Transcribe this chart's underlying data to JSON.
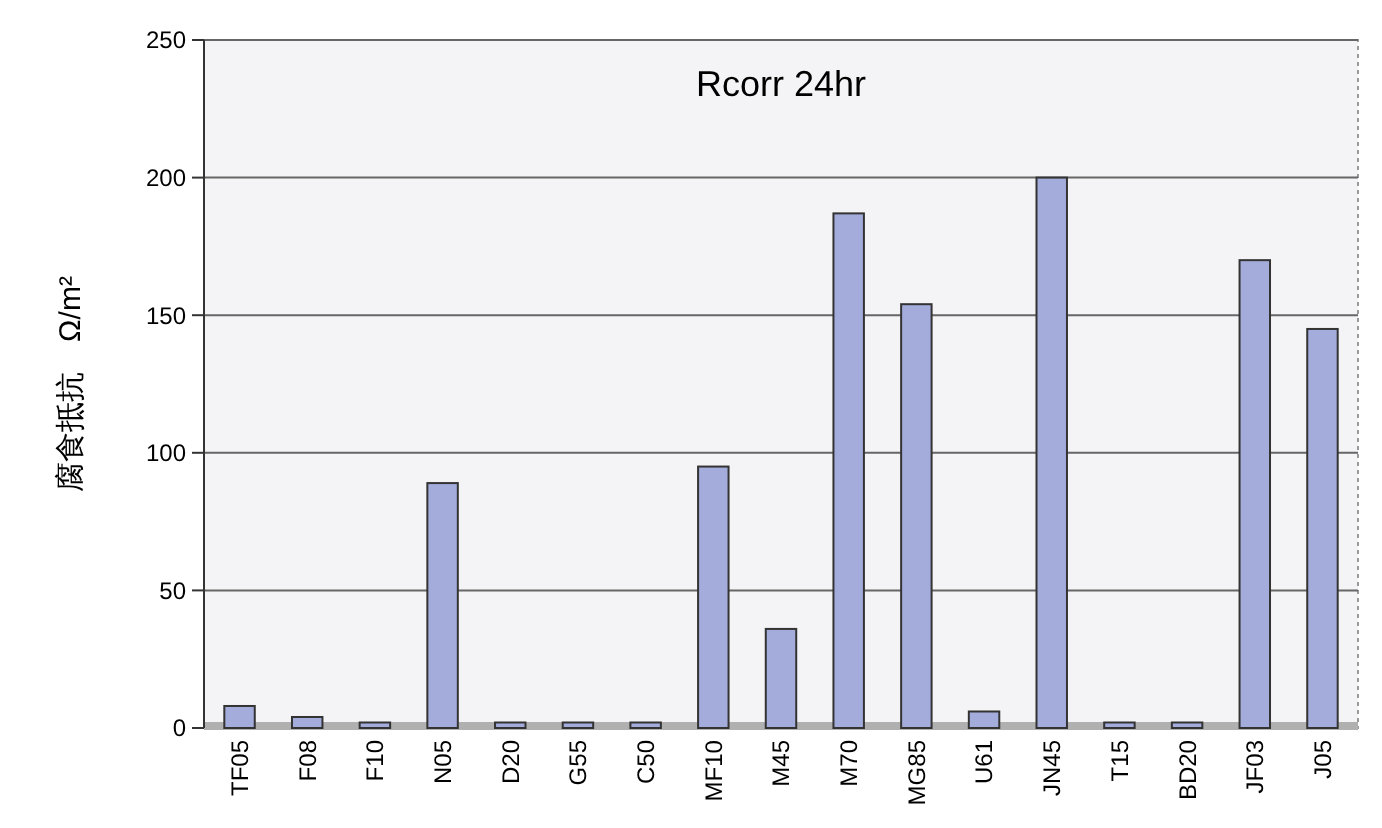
{
  "chart_data": {
    "type": "bar",
    "title": "Rcorr  24hr",
    "ylabel": "腐食抵抗　Ω/m²",
    "categories": [
      "TF05",
      "F08",
      "F10",
      "N05",
      "D20",
      "G55",
      "C50",
      "MF10",
      "M45",
      "M70",
      "MG85",
      "U61",
      "JN45",
      "T15",
      "BD20",
      "JF03",
      "J05"
    ],
    "values": [
      8,
      4,
      2,
      89,
      2,
      2,
      2,
      95,
      36,
      187,
      154,
      6,
      200,
      2,
      2,
      170,
      145
    ],
    "color": "#a4acdc",
    "ylim": [
      0,
      250
    ],
    "yticks": [
      0,
      50,
      100,
      150,
      200,
      250
    ],
    "grid": "y"
  }
}
